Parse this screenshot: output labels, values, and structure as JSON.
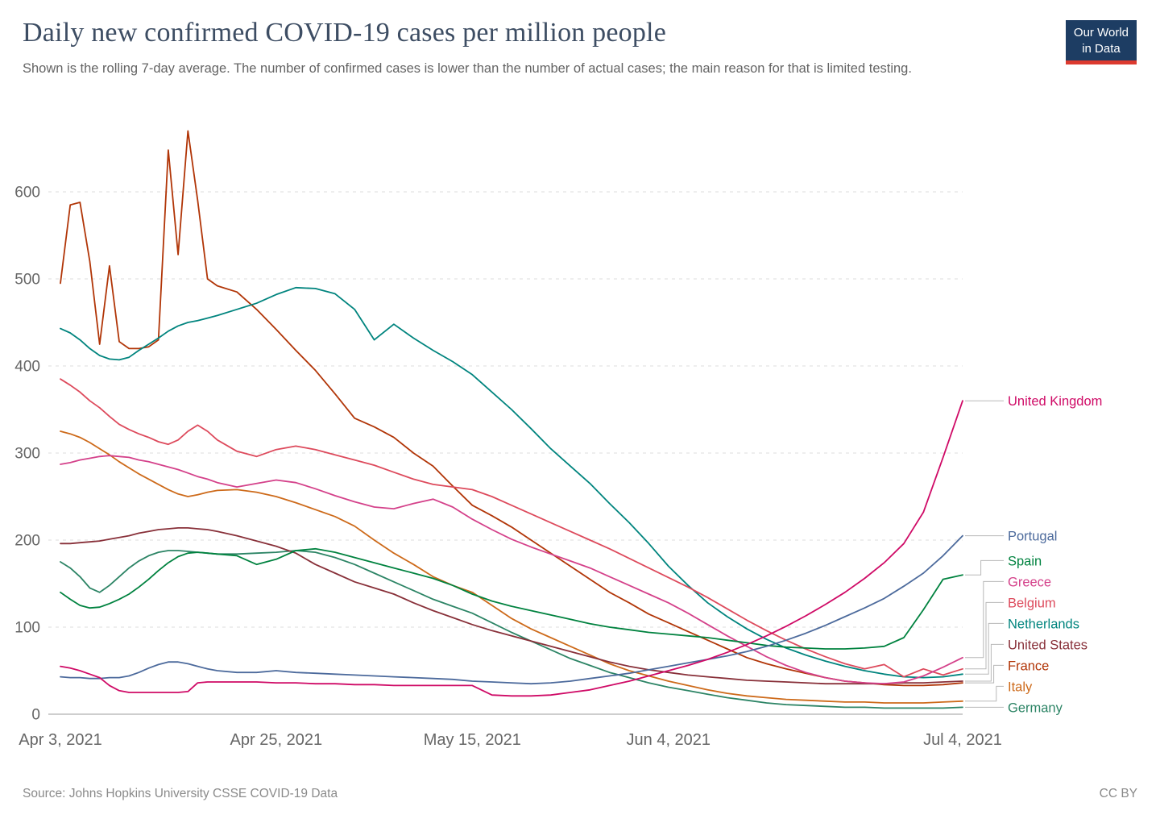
{
  "header": {
    "title": "Daily new confirmed COVID-19 cases per million people",
    "subtitle": "Shown is the rolling 7-day average. The number of confirmed cases is lower than the number of actual cases; the main reason for that is limited testing."
  },
  "logo": {
    "line1": "Our World",
    "line2": "in Data",
    "bg_color": "#1d3d63",
    "accent_color": "#dc3a2f"
  },
  "chart_data": {
    "type": "line",
    "title": "Daily new confirmed COVID-19 cases per million people",
    "xlabel": "",
    "ylabel": "",
    "ylim": [
      0,
      600
    ],
    "grid": true,
    "legend_position": "right",
    "x_unit": "days since Apr 3, 2021",
    "x_days": [
      0,
      1,
      2,
      3,
      4,
      5,
      6,
      7,
      8,
      9,
      10,
      11,
      12,
      13,
      14,
      15,
      16,
      18,
      20,
      22,
      24,
      26,
      28,
      30,
      32,
      34,
      36,
      38,
      40,
      42,
      44,
      46,
      48,
      50,
      52,
      54,
      56,
      58,
      60,
      62,
      64,
      66,
      68,
      70,
      72,
      74,
      76,
      78,
      80,
      82,
      84,
      86,
      88,
      90,
      92
    ],
    "x_ticks": [
      {
        "day": 0,
        "label": "Apr 3, 2021"
      },
      {
        "day": 22,
        "label": "Apr 25, 2021"
      },
      {
        "day": 42,
        "label": "May 15, 2021"
      },
      {
        "day": 62,
        "label": "Jun 4, 2021"
      },
      {
        "day": 92,
        "label": "Jul 4, 2021"
      }
    ],
    "y_ticks": [
      0,
      100,
      200,
      300,
      400,
      500,
      600
    ],
    "series": [
      {
        "name": "United Kingdom",
        "color": "#cf0a66",
        "values": [
          55,
          53,
          50,
          46,
          42,
          33,
          27,
          25,
          25,
          25,
          25,
          25,
          25,
          26,
          36,
          37,
          37,
          37,
          37,
          36,
          36,
          35,
          35,
          34,
          34,
          33,
          33,
          33,
          33,
          33,
          22,
          21,
          21,
          22,
          25,
          28,
          33,
          38,
          44,
          50,
          56,
          63,
          71,
          80,
          90,
          101,
          113,
          126,
          140,
          156,
          174,
          196,
          232,
          295,
          360
        ]
      },
      {
        "name": "Portugal",
        "color": "#4c6a9c",
        "values": [
          43,
          42,
          42,
          41,
          41,
          42,
          42,
          44,
          48,
          53,
          57,
          60,
          60,
          58,
          55,
          52,
          50,
          48,
          48,
          50,
          48,
          47,
          46,
          45,
          44,
          43,
          42,
          41,
          40,
          38,
          37,
          36,
          35,
          36,
          38,
          41,
          44,
          47,
          51,
          55,
          59,
          63,
          67,
          72,
          78,
          85,
          93,
          102,
          112,
          122,
          133,
          147,
          162,
          182,
          205
        ]
      },
      {
        "name": "Spain",
        "color": "#00823f",
        "values": [
          140,
          132,
          125,
          122,
          123,
          127,
          132,
          138,
          146,
          155,
          165,
          174,
          181,
          185,
          186,
          185,
          184,
          182,
          172,
          178,
          188,
          190,
          186,
          180,
          174,
          168,
          162,
          156,
          148,
          138,
          130,
          124,
          119,
          114,
          109,
          104,
          100,
          97,
          94,
          92,
          90,
          88,
          85,
          82,
          79,
          77,
          76,
          75,
          75,
          76,
          78,
          88,
          120,
          155,
          160
        ]
      },
      {
        "name": "Greece",
        "color": "#d4418a",
        "values": [
          287,
          289,
          292,
          294,
          296,
          297,
          296,
          295,
          292,
          290,
          287,
          284,
          281,
          277,
          273,
          270,
          266,
          261,
          265,
          269,
          266,
          259,
          251,
          244,
          238,
          236,
          242,
          247,
          238,
          224,
          212,
          201,
          192,
          184,
          176,
          168,
          158,
          148,
          138,
          128,
          116,
          103,
          90,
          78,
          66,
          56,
          48,
          42,
          38,
          36,
          35,
          37,
          44,
          54,
          65
        ]
      },
      {
        "name": "Belgium",
        "color": "#dd4a5c",
        "values": [
          385,
          378,
          370,
          360,
          352,
          342,
          333,
          327,
          322,
          318,
          313,
          310,
          315,
          325,
          332,
          325,
          315,
          302,
          296,
          304,
          308,
          304,
          298,
          292,
          286,
          278,
          270,
          264,
          261,
          258,
          250,
          240,
          230,
          220,
          210,
          200,
          190,
          179,
          168,
          157,
          146,
          134,
          121,
          108,
          96,
          85,
          75,
          66,
          58,
          52,
          57,
          43,
          52,
          45,
          52
        ]
      },
      {
        "name": "Netherlands",
        "color": "#00847e",
        "values": [
          443,
          438,
          430,
          420,
          412,
          408,
          407,
          410,
          418,
          425,
          432,
          440,
          446,
          450,
          452,
          455,
          458,
          465,
          472,
          482,
          490,
          489,
          483,
          465,
          430,
          448,
          432,
          418,
          405,
          390,
          370,
          350,
          328,
          305,
          285,
          265,
          242,
          220,
          196,
          170,
          148,
          128,
          112,
          98,
          86,
          76,
          68,
          61,
          55,
          50,
          46,
          43,
          42,
          43,
          46
        ]
      },
      {
        "name": "United States",
        "color": "#883039",
        "values": [
          196,
          196,
          197,
          198,
          199,
          201,
          203,
          205,
          208,
          210,
          212,
          213,
          214,
          214,
          213,
          212,
          210,
          205,
          199,
          193,
          185,
          172,
          162,
          152,
          145,
          138,
          128,
          119,
          111,
          103,
          96,
          90,
          84,
          78,
          72,
          66,
          60,
          55,
          51,
          48,
          45,
          43,
          41,
          39,
          38,
          37,
          36,
          35,
          35,
          35,
          35,
          36,
          36,
          37,
          38
        ]
      },
      {
        "name": "France",
        "color": "#b13507",
        "values": [
          495,
          585,
          588,
          520,
          425,
          515,
          428,
          420,
          420,
          422,
          430,
          648,
          528,
          670,
          590,
          500,
          492,
          485,
          465,
          442,
          418,
          395,
          368,
          340,
          330,
          318,
          300,
          285,
          262,
          240,
          228,
          215,
          200,
          185,
          170,
          155,
          140,
          128,
          115,
          105,
          95,
          85,
          75,
          65,
          58,
          52,
          47,
          42,
          38,
          36,
          34,
          33,
          33,
          34,
          36
        ]
      },
      {
        "name": "Italy",
        "color": "#cd6a1a",
        "values": [
          325,
          322,
          318,
          312,
          305,
          298,
          290,
          283,
          276,
          270,
          264,
          258,
          253,
          250,
          252,
          255,
          257,
          258,
          255,
          250,
          243,
          235,
          227,
          216,
          200,
          185,
          172,
          158,
          148,
          140,
          125,
          110,
          98,
          88,
          78,
          68,
          58,
          50,
          44,
          38,
          33,
          28,
          24,
          21,
          19,
          17,
          16,
          15,
          14,
          14,
          13,
          13,
          13,
          14,
          15
        ]
      },
      {
        "name": "Germany",
        "color": "#2c8465",
        "values": [
          175,
          168,
          158,
          145,
          140,
          148,
          158,
          168,
          176,
          182,
          186,
          188,
          188,
          187,
          186,
          185,
          184,
          184,
          185,
          186,
          188,
          186,
          180,
          172,
          162,
          152,
          142,
          132,
          124,
          116,
          105,
          94,
          84,
          74,
          64,
          56,
          48,
          42,
          36,
          31,
          27,
          23,
          19,
          16,
          13,
          11,
          10,
          9,
          8,
          8,
          7,
          7,
          7,
          7,
          8
        ]
      }
    ]
  },
  "footer": {
    "source": "Source: Johns Hopkins University CSSE COVID-19 Data",
    "license": "CC BY"
  }
}
